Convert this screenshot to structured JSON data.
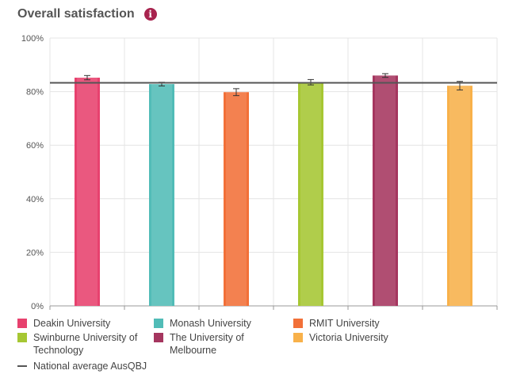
{
  "header": {
    "title": "Overall satisfaction",
    "info_icon": "info-icon",
    "info_glyph": "i"
  },
  "chart_data": {
    "type": "bar",
    "title": "Overall satisfaction",
    "categories": [
      "Deakin University",
      "Monash University",
      "RMIT University",
      "Swinburne University of Technology",
      "The University of Melbourne",
      "Victoria University"
    ],
    "values": [
      85.2,
      82.8,
      79.8,
      83.5,
      86.0,
      82.2
    ],
    "error_bars": [
      0.8,
      0.7,
      1.3,
      1.0,
      0.7,
      1.6
    ],
    "colors": [
      "#e7416e",
      "#51bcb7",
      "#f27038",
      "#a6c733",
      "#a5365f",
      "#f8b14a"
    ],
    "ylim": [
      0,
      100
    ],
    "yticks": [
      "0%",
      "20%",
      "40%",
      "60%",
      "80%",
      "100%"
    ],
    "ytick_values": [
      0,
      20,
      40,
      60,
      80,
      100
    ],
    "reference_line": {
      "label": "National average",
      "source": "AusQBJ",
      "value": 83.3,
      "color": "#555555"
    },
    "legend_position": "bottom"
  },
  "legend": {
    "items": [
      {
        "label": "Deakin University"
      },
      {
        "label": "Monash University"
      },
      {
        "label": "RMIT University"
      },
      {
        "label": "Swinburne University of Technology"
      },
      {
        "label": "The University of Melbourne"
      },
      {
        "label": "Victoria University"
      }
    ],
    "national_label": "National average",
    "national_source": "AusQBJ"
  }
}
